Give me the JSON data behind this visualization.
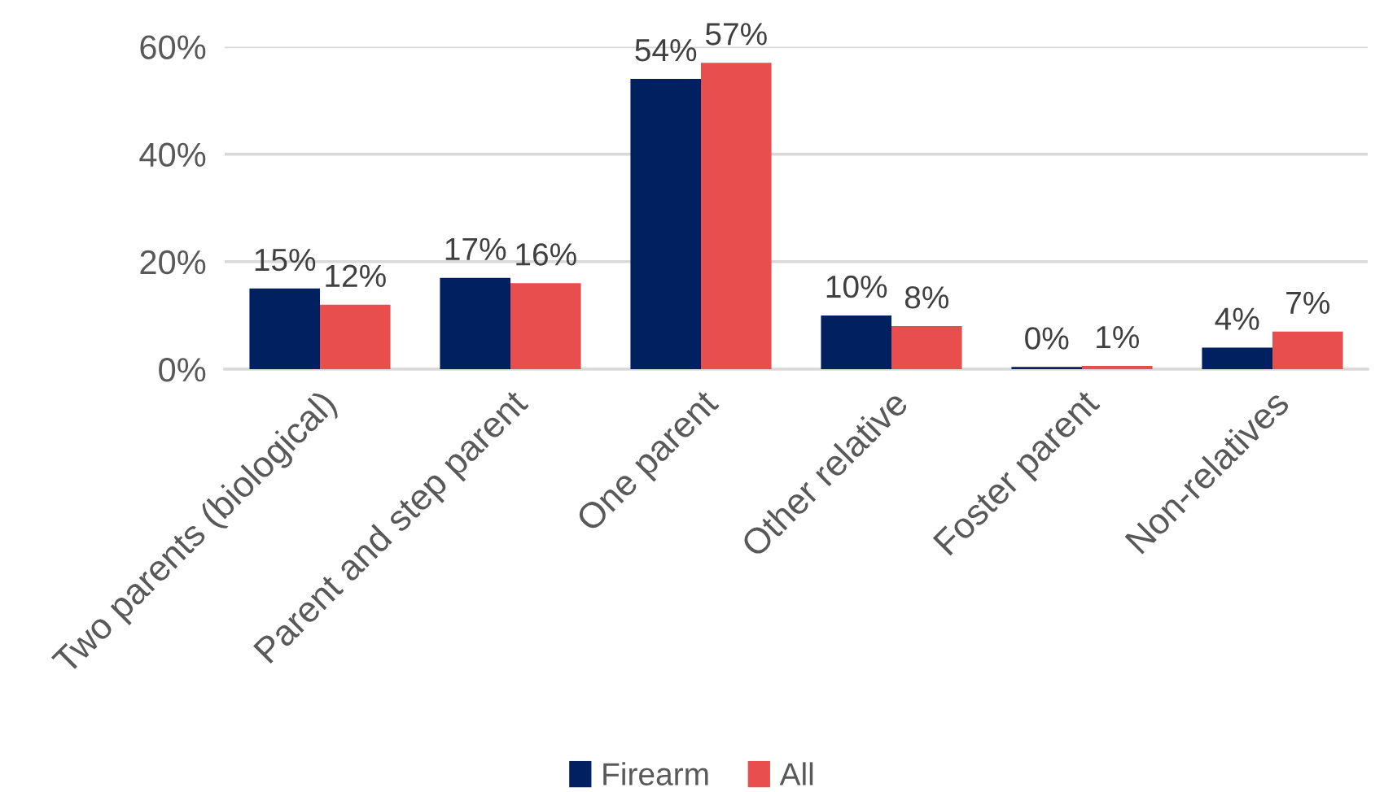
{
  "chart_data": {
    "type": "bar",
    "categories": [
      "Two parents (biological)",
      "Parent and step parent",
      "One parent",
      "Other relative",
      "Foster parent",
      "Non-relatives"
    ],
    "series": [
      {
        "name": "Firearm",
        "color": "#002060",
        "values": [
          15,
          17,
          54,
          10,
          0.4,
          4
        ],
        "value_labels": [
          "15%",
          "17%",
          "54%",
          "10%",
          "0%",
          "4%"
        ]
      },
      {
        "name": "All",
        "color": "#e84e4e",
        "values": [
          12,
          16,
          57,
          8,
          0.6,
          7
        ],
        "value_labels": [
          "12%",
          "16%",
          "57%",
          "8%",
          "1%",
          "7%"
        ]
      }
    ],
    "ylim": [
      0,
      60
    ],
    "yticks": [
      {
        "value": 0,
        "label": "0%"
      },
      {
        "value": 20,
        "label": "20%"
      },
      {
        "value": 40,
        "label": "40%"
      },
      {
        "value": 60,
        "label": "60%"
      }
    ],
    "grid": "y",
    "legend": "bottom"
  }
}
